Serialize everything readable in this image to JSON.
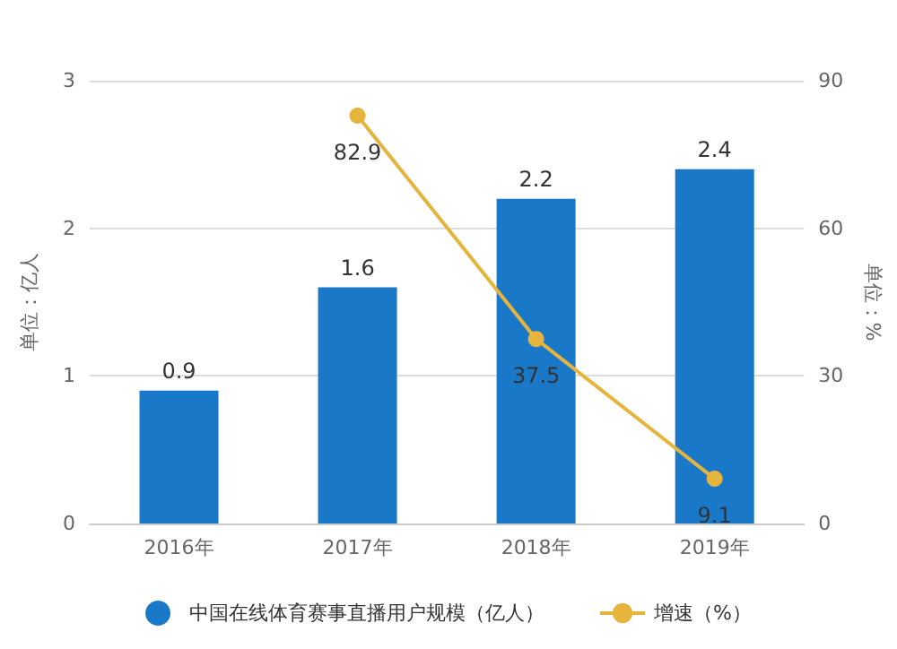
{
  "chart_data": {
    "type": "bar",
    "categories": [
      "2016年",
      "2017年",
      "2018年",
      "2019年"
    ],
    "ylabel": "单位：亿人",
    "y2label": "单位：%",
    "series": [
      {
        "name": "中国在线体育赛事直播用户规模（亿人）",
        "color": "#1a78c8",
        "values": [
          0.9,
          1.6,
          2.2,
          2.4
        ]
      },
      {
        "name": "增速（%）",
        "type": "line",
        "axis": "y2",
        "color": "#e6b43c",
        "values": [
          null,
          82.9,
          37.5,
          9.1
        ]
      }
    ],
    "ylim": [
      0,
      3
    ],
    "yticks": [
      0,
      1,
      2,
      3
    ],
    "y2lim": [
      0,
      90
    ],
    "y2ticks": [
      0,
      30,
      60,
      90
    ],
    "data_labels": true,
    "grid": "y",
    "legend": "bottom",
    "marker": "circle"
  }
}
